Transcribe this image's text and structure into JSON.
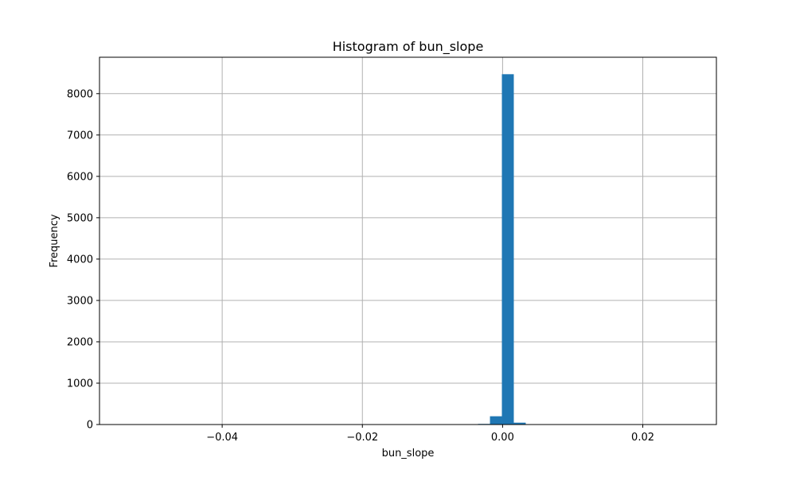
{
  "chart_data": {
    "type": "bar",
    "title": "Histogram of bun_slope",
    "xlabel": "bun_slope",
    "ylabel": "Frequency",
    "xlim": [
      -0.0575,
      0.0305
    ],
    "ylim": [
      0,
      8880
    ],
    "xticks": [
      {
        "value": -0.04,
        "label": "−0.04"
      },
      {
        "value": -0.02,
        "label": "−0.02"
      },
      {
        "value": 0.0,
        "label": "0.00"
      },
      {
        "value": 0.02,
        "label": "0.02"
      }
    ],
    "yticks": [
      {
        "value": 0,
        "label": "0"
      },
      {
        "value": 1000,
        "label": "1000"
      },
      {
        "value": 2000,
        "label": "2000"
      },
      {
        "value": 3000,
        "label": "3000"
      },
      {
        "value": 4000,
        "label": "4000"
      },
      {
        "value": 5000,
        "label": "5000"
      },
      {
        "value": 6000,
        "label": "6000"
      },
      {
        "value": 7000,
        "label": "7000"
      },
      {
        "value": 8000,
        "label": "8000"
      }
    ],
    "bins": [
      {
        "x0": -0.0035,
        "x1": -0.0018,
        "count": 15
      },
      {
        "x0": -0.0018,
        "x1": -0.0001,
        "count": 200
      },
      {
        "x0": -0.0001,
        "x1": 0.0016,
        "count": 8470
      },
      {
        "x0": 0.0016,
        "x1": 0.0033,
        "count": 45
      },
      {
        "x0": 0.0033,
        "x1": 0.005,
        "count": 5
      }
    ],
    "grid": true,
    "bar_color": "#1f77b4",
    "grid_color": "#b0b0b0"
  }
}
